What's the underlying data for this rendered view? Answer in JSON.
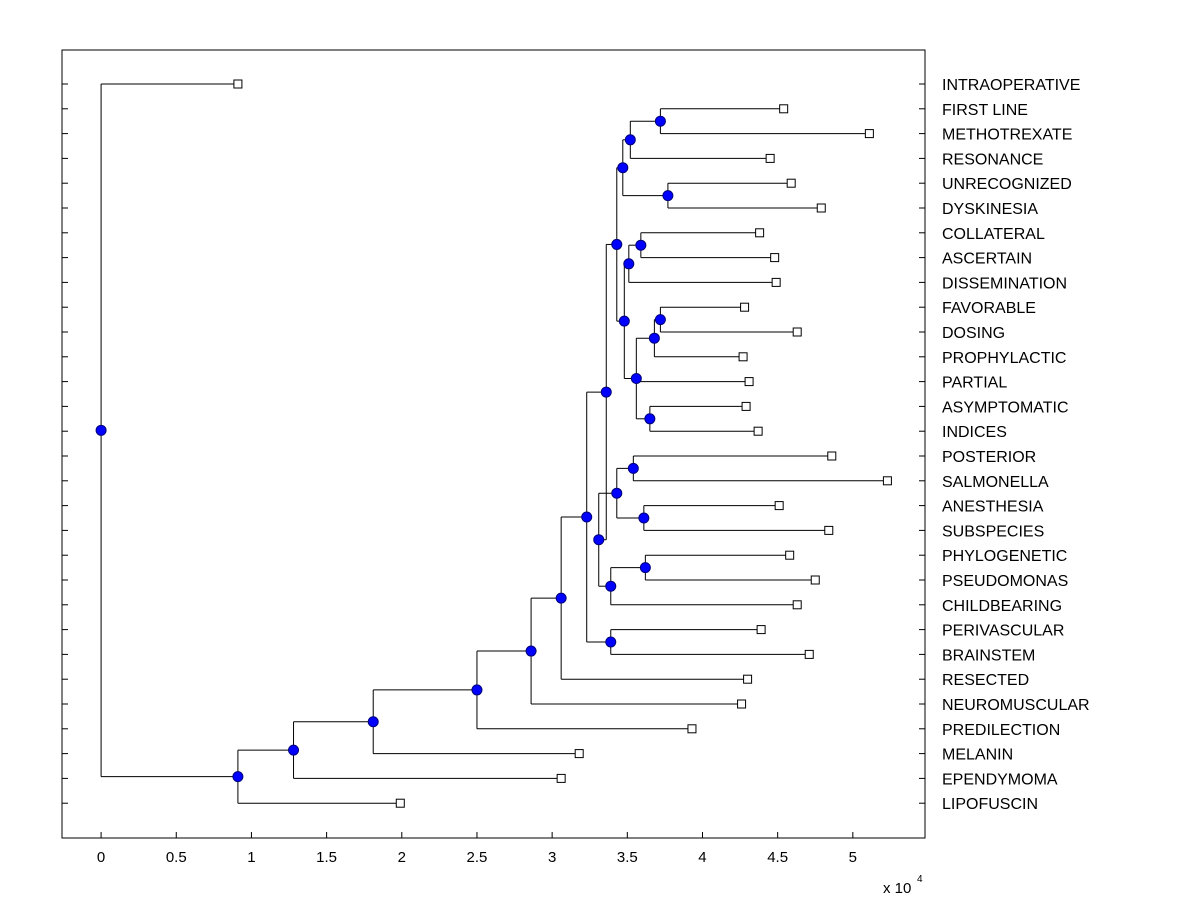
{
  "chart_data": {
    "type": "dendrogram",
    "title": "",
    "xlabel": "",
    "ylabel": "",
    "x_multiplier_label": "x 10",
    "x_multiplier_exponent": "4",
    "xlim": [
      -0.26,
      5.48
    ],
    "xticks": [
      {
        "value": 0,
        "label": "0"
      },
      {
        "value": 0.5,
        "label": "0.5"
      },
      {
        "value": 1,
        "label": "1"
      },
      {
        "value": 1.5,
        "label": "1.5"
      },
      {
        "value": 2,
        "label": "2"
      },
      {
        "value": 2.5,
        "label": "2.5"
      },
      {
        "value": 3,
        "label": "3"
      },
      {
        "value": 3.5,
        "label": "3.5"
      },
      {
        "value": 4,
        "label": "4"
      },
      {
        "value": 4.5,
        "label": "4.5"
      },
      {
        "value": 5,
        "label": "5"
      }
    ],
    "leaves": [
      {
        "label": "INTRAOPERATIVE",
        "value": 0.91
      },
      {
        "label": "FIRST LINE",
        "value": 4.54
      },
      {
        "label": "METHOTREXATE",
        "value": 5.11
      },
      {
        "label": "RESONANCE",
        "value": 4.45
      },
      {
        "label": "UNRECOGNIZED",
        "value": 4.59
      },
      {
        "label": "DYSKINESIA",
        "value": 4.79
      },
      {
        "label": "COLLATERAL",
        "value": 4.38
      },
      {
        "label": "ASCERTAIN",
        "value": 4.48
      },
      {
        "label": "DISSEMINATION",
        "value": 4.49
      },
      {
        "label": "FAVORABLE",
        "value": 4.28
      },
      {
        "label": "DOSING",
        "value": 4.63
      },
      {
        "label": "PROPHYLACTIC",
        "value": 4.27
      },
      {
        "label": "PARTIAL",
        "value": 4.31
      },
      {
        "label": "ASYMPTOMATIC",
        "value": 4.29
      },
      {
        "label": "INDICES",
        "value": 4.37
      },
      {
        "label": "POSTERIOR",
        "value": 4.86
      },
      {
        "label": "SALMONELLA",
        "value": 5.23
      },
      {
        "label": "ANESTHESIA",
        "value": 4.51
      },
      {
        "label": "SUBSPECIES",
        "value": 4.84
      },
      {
        "label": "PHYLOGENETIC",
        "value": 4.58
      },
      {
        "label": "PSEUDOMONAS",
        "value": 4.75
      },
      {
        "label": "CHILDBEARING",
        "value": 4.63
      },
      {
        "label": "PERIVASCULAR",
        "value": 4.39
      },
      {
        "label": "BRAINSTEM",
        "value": 4.71
      },
      {
        "label": "RESECTED",
        "value": 4.3
      },
      {
        "label": "NEUROMUSCULAR",
        "value": 4.26
      },
      {
        "label": "PREDILECTION",
        "value": 3.93
      },
      {
        "label": "MELANIN",
        "value": 3.18
      },
      {
        "label": "EPENDYMOMA",
        "value": 3.06
      },
      {
        "label": "LIPOFUSCIN",
        "value": 1.99
      }
    ],
    "internal_nodes": [
      {
        "id": "n1",
        "value": 3.72,
        "children": [
          "L1",
          "L2"
        ]
      },
      {
        "id": "n2",
        "value": 3.52,
        "children": [
          "n1",
          "L3"
        ]
      },
      {
        "id": "n3",
        "value": 3.77,
        "children": [
          "L4",
          "L5"
        ]
      },
      {
        "id": "n4",
        "value": 3.47,
        "children": [
          "n2",
          "n3"
        ]
      },
      {
        "id": "n5",
        "value": 3.59,
        "children": [
          "L6",
          "L7"
        ]
      },
      {
        "id": "n6",
        "value": 3.51,
        "children": [
          "n5",
          "L8"
        ]
      },
      {
        "id": "n7",
        "value": 3.72,
        "children": [
          "L9",
          "L10"
        ]
      },
      {
        "id": "n8",
        "value": 3.68,
        "children": [
          "n7",
          "L11"
        ]
      },
      {
        "id": "n9",
        "value": 3.65,
        "children": [
          "L13",
          "L14"
        ]
      },
      {
        "id": "n10",
        "value": 3.56,
        "children": [
          "n8",
          "L12",
          "n9"
        ]
      },
      {
        "id": "n11",
        "value": 3.48,
        "children": [
          "n6",
          "n10"
        ]
      },
      {
        "id": "n12",
        "value": 3.43,
        "children": [
          "n4",
          "n11"
        ]
      },
      {
        "id": "n13",
        "value": 3.54,
        "children": [
          "L15",
          "L16"
        ]
      },
      {
        "id": "n14",
        "value": 3.61,
        "children": [
          "L17",
          "L18"
        ]
      },
      {
        "id": "n15",
        "value": 3.43,
        "children": [
          "n13",
          "n14"
        ]
      },
      {
        "id": "n16",
        "value": 3.62,
        "children": [
          "L19",
          "L20"
        ]
      },
      {
        "id": "n17",
        "value": 3.39,
        "children": [
          "n16",
          "L21"
        ]
      },
      {
        "id": "n18",
        "value": 3.31,
        "children": [
          "n15",
          "n17"
        ]
      },
      {
        "id": "n19",
        "value": 3.36,
        "children": [
          "n12",
          "n18"
        ]
      },
      {
        "id": "n20",
        "value": 3.39,
        "children": [
          "L22",
          "L23"
        ]
      },
      {
        "id": "n21",
        "value": 3.23,
        "children": [
          "n19",
          "n20"
        ]
      },
      {
        "id": "n22",
        "value": 3.06,
        "children": [
          "n21",
          "L24"
        ]
      },
      {
        "id": "n23",
        "value": 2.86,
        "children": [
          "n22",
          "L25"
        ]
      },
      {
        "id": "n24",
        "value": 2.5,
        "children": [
          "n23",
          "L26"
        ]
      },
      {
        "id": "n25",
        "value": 1.81,
        "children": [
          "n24",
          "L27"
        ]
      },
      {
        "id": "n26",
        "value": 1.28,
        "children": [
          "n25",
          "L28"
        ]
      },
      {
        "id": "n27",
        "value": 0.91,
        "children": [
          "n26",
          "L29"
        ]
      },
      {
        "id": "root",
        "value": 0.0,
        "children": [
          "L0",
          "n27"
        ]
      }
    ]
  },
  "colors": {
    "axes": "#000000",
    "branch": "#000000",
    "node_fill": "#0000ff",
    "node_stroke": "#00007a",
    "leaf_fill": "#ffffff",
    "background": "#ffffff"
  }
}
